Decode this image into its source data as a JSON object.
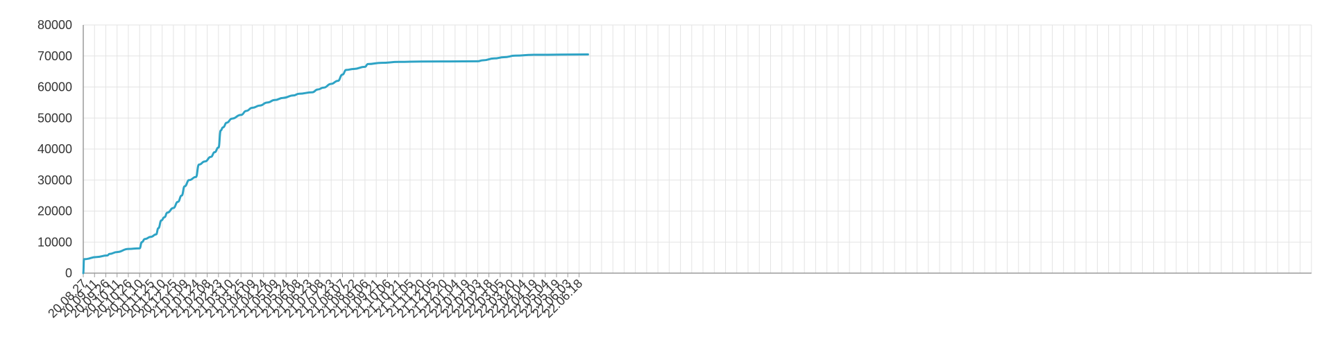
{
  "chart_data": {
    "type": "line",
    "title": "",
    "xlabel": "",
    "ylabel": "",
    "ylim": [
      0,
      80000
    ],
    "grid": true,
    "legend": "none",
    "color": "#2ea3c5",
    "y_ticks": [
      "0",
      "10000",
      "20000",
      "30000",
      "40000",
      "50000",
      "60000",
      "70000",
      "80000"
    ],
    "x_tick_labels": [
      "20.08.27",
      "20.09.11",
      "20.09.26",
      "20.10.11",
      "20.10.26",
      "20.11.10",
      "20.11.25",
      "20.12.10",
      "20.12.25",
      "21.01.09",
      "21.01.24",
      "21.02.08",
      "21.02.23",
      "21.03.10",
      "21.03.25",
      "21.04.09",
      "21.04.24",
      "21.05.09",
      "21.05.24",
      "21.06.08",
      "21.06.23",
      "21.07.08",
      "21.07.23",
      "21.08.07",
      "21.08.22",
      "21.09.06",
      "21.09.21",
      "21.10.06",
      "21.10.21",
      "21.11.05",
      "21.11.20",
      "21.12.05",
      "21.12.20",
      "22.01.04",
      "22.01.19",
      "22.02.03",
      "22.02.18",
      "22.03.05",
      "22.03.20",
      "22.04.04",
      "22.04.19",
      "22.05.04",
      "22.05.19",
      "22.06.03",
      "22.06.18"
    ],
    "series": [
      {
        "values": [
          {
            "x": "2020-08-27",
            "y": 0
          },
          {
            "x": "2020-08-28",
            "y": 4500
          },
          {
            "x": "2020-09-14",
            "y": 5200
          },
          {
            "x": "2020-09-28",
            "y": 5700
          },
          {
            "x": "2020-10-01",
            "y": 6200
          },
          {
            "x": "2020-10-11",
            "y": 6800
          },
          {
            "x": "2020-10-26",
            "y": 7800
          },
          {
            "x": "2020-11-10",
            "y": 8000
          },
          {
            "x": "2020-11-13",
            "y": 10000
          },
          {
            "x": "2020-11-17",
            "y": 11000
          },
          {
            "x": "2020-11-25",
            "y": 11700
          },
          {
            "x": "2020-12-02",
            "y": 12500
          },
          {
            "x": "2020-12-05",
            "y": 14500
          },
          {
            "x": "2020-12-09",
            "y": 17000
          },
          {
            "x": "2020-12-13",
            "y": 18000
          },
          {
            "x": "2020-12-17",
            "y": 19500
          },
          {
            "x": "2020-12-25",
            "y": 21000
          },
          {
            "x": "2020-12-31",
            "y": 23000
          },
          {
            "x": "2021-01-05",
            "y": 25000
          },
          {
            "x": "2021-01-09",
            "y": 28000
          },
          {
            "x": "2021-01-15",
            "y": 30000
          },
          {
            "x": "2021-01-24",
            "y": 31000
          },
          {
            "x": "2021-01-28",
            "y": 35000
          },
          {
            "x": "2021-02-05",
            "y": 36000
          },
          {
            "x": "2021-02-13",
            "y": 37500
          },
          {
            "x": "2021-02-18",
            "y": 39000
          },
          {
            "x": "2021-02-23",
            "y": 40500
          },
          {
            "x": "2021-02-26",
            "y": 46000
          },
          {
            "x": "2021-03-01",
            "y": 47000
          },
          {
            "x": "2021-03-06",
            "y": 48500
          },
          {
            "x": "2021-03-13",
            "y": 49800
          },
          {
            "x": "2021-03-25",
            "y": 51000
          },
          {
            "x": "2021-04-01",
            "y": 52300
          },
          {
            "x": "2021-04-09",
            "y": 53300
          },
          {
            "x": "2021-04-19",
            "y": 54000
          },
          {
            "x": "2021-04-29",
            "y": 55000
          },
          {
            "x": "2021-05-09",
            "y": 55800
          },
          {
            "x": "2021-05-20",
            "y": 56500
          },
          {
            "x": "2021-06-03",
            "y": 57300
          },
          {
            "x": "2021-06-10",
            "y": 57800
          },
          {
            "x": "2021-06-28",
            "y": 58300
          },
          {
            "x": "2021-07-05",
            "y": 59200
          },
          {
            "x": "2021-07-13",
            "y": 59800
          },
          {
            "x": "2021-07-23",
            "y": 61000
          },
          {
            "x": "2021-08-01",
            "y": 62000
          },
          {
            "x": "2021-08-07",
            "y": 64000
          },
          {
            "x": "2021-08-12",
            "y": 65500
          },
          {
            "x": "2021-08-22",
            "y": 65800
          },
          {
            "x": "2021-09-06",
            "y": 66500
          },
          {
            "x": "2021-09-10",
            "y": 67400
          },
          {
            "x": "2021-09-28",
            "y": 67800
          },
          {
            "x": "2021-10-21",
            "y": 68100
          },
          {
            "x": "2021-11-20",
            "y": 68200
          },
          {
            "x": "2022-02-03",
            "y": 68300
          },
          {
            "x": "2022-02-10",
            "y": 68600
          },
          {
            "x": "2022-02-25",
            "y": 69200
          },
          {
            "x": "2022-03-10",
            "y": 69600
          },
          {
            "x": "2022-03-25",
            "y": 70100
          },
          {
            "x": "2022-04-19",
            "y": 70400
          },
          {
            "x": "2022-06-30",
            "y": 70500
          }
        ]
      }
    ]
  }
}
